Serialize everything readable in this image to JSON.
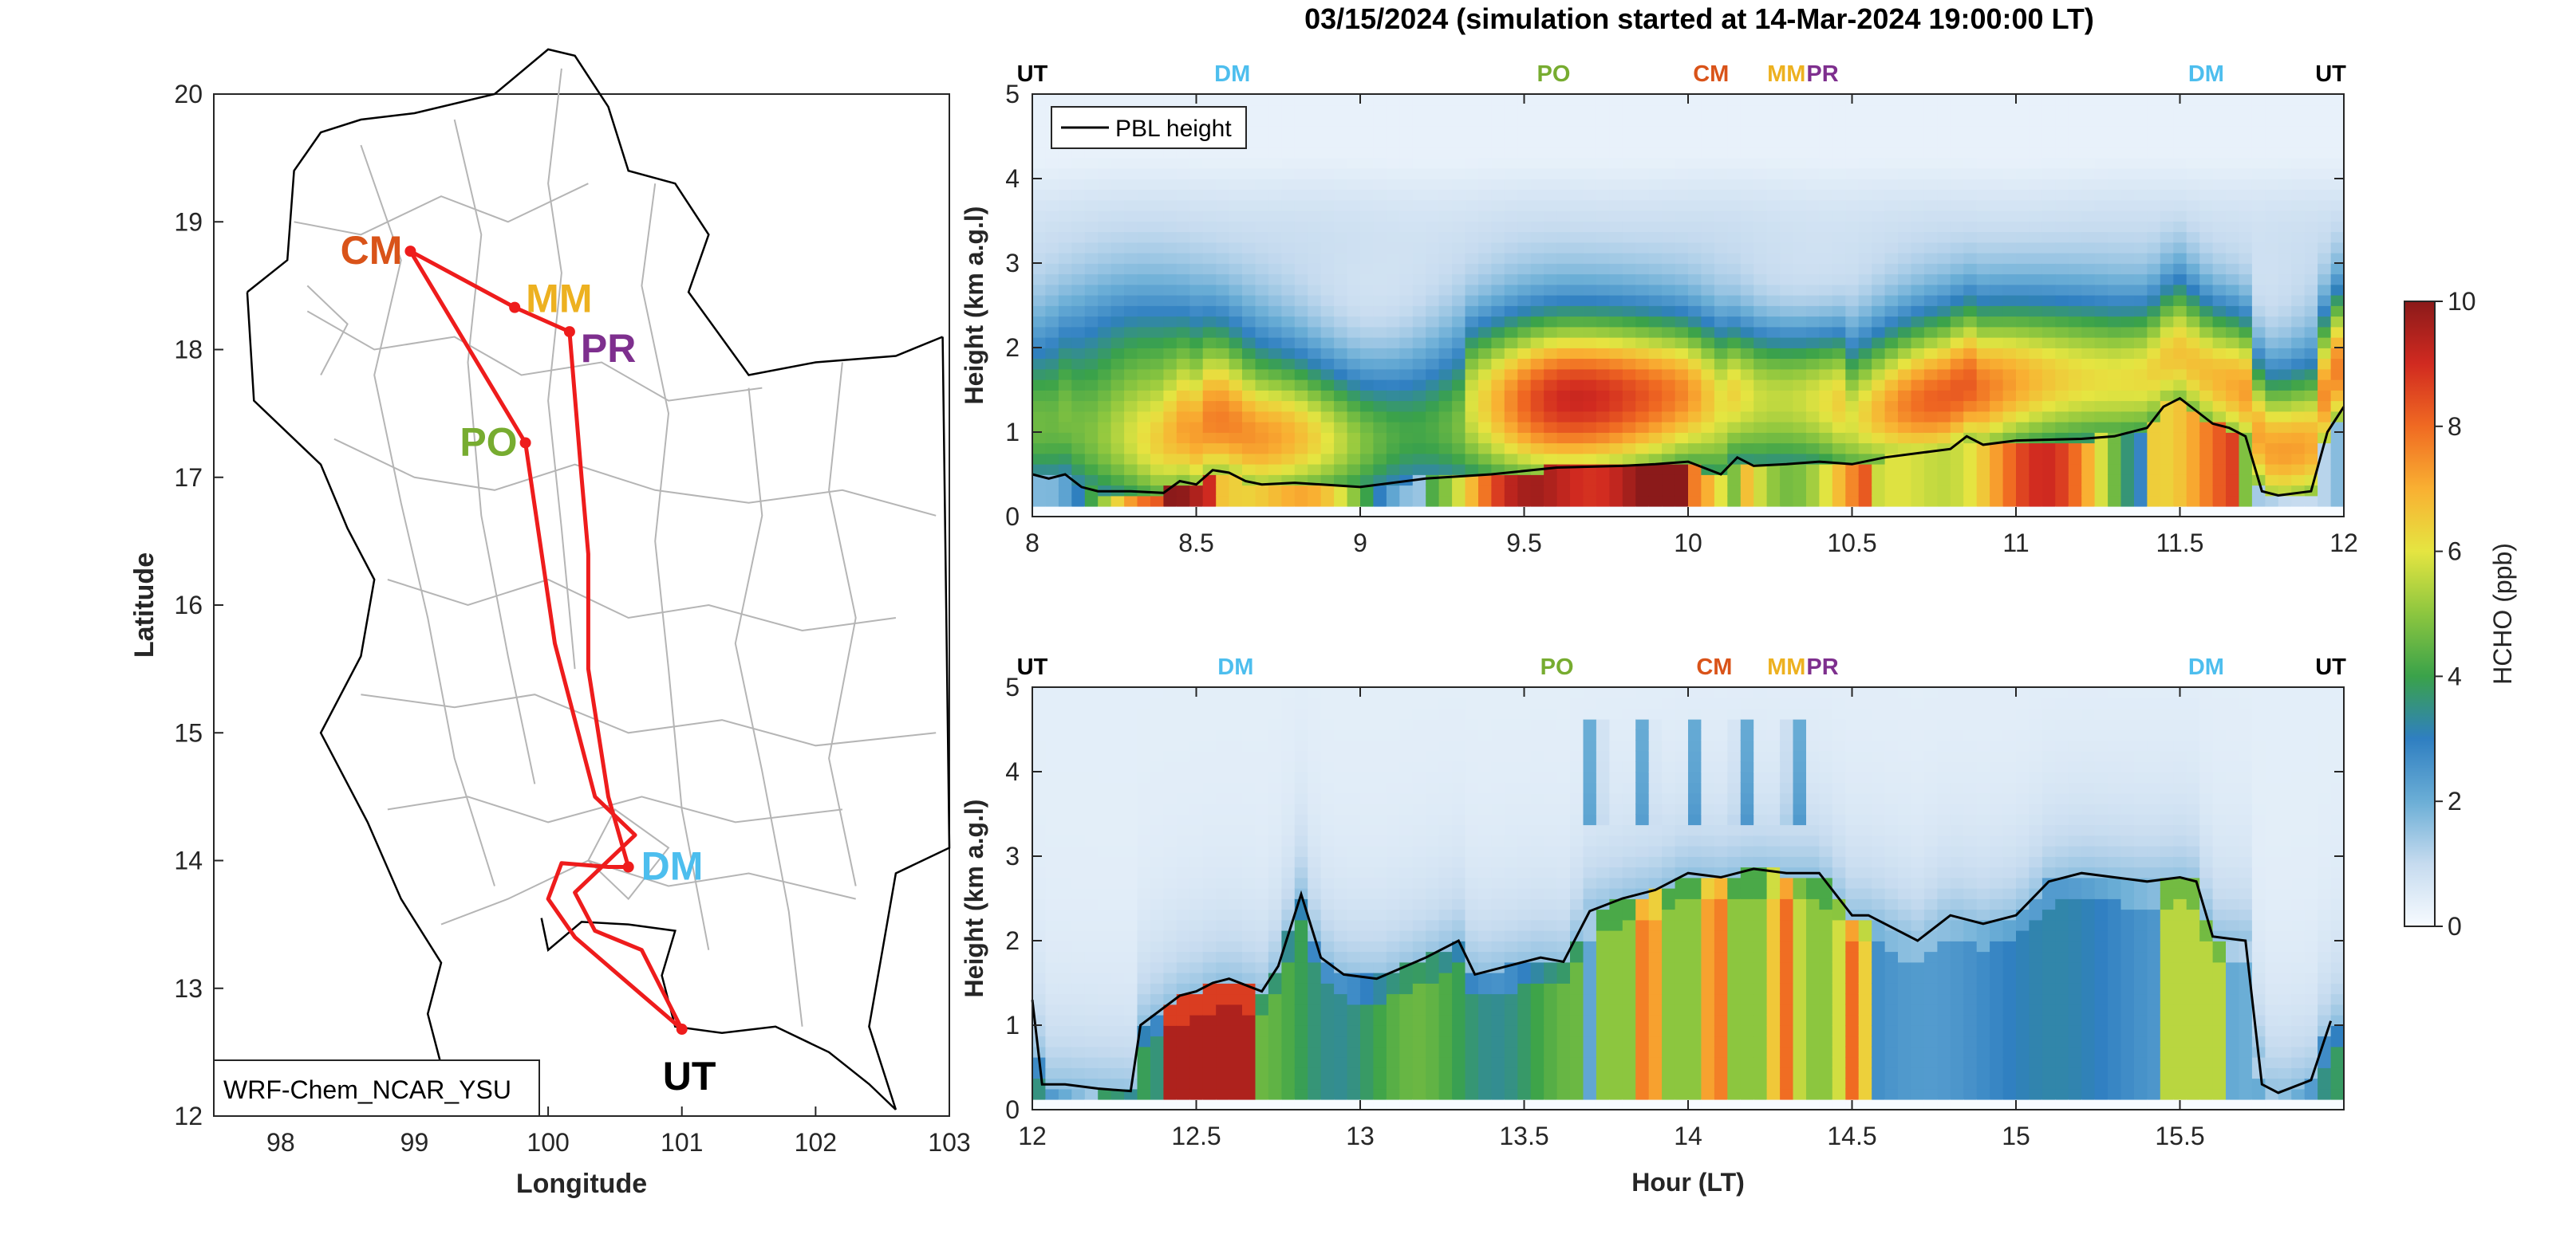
{
  "title": "03/15/2024 (simulation started at 14-Mar-2024 19:00:00 LT)",
  "colors": {
    "route": "#ee1c1c",
    "CM": "#d95319",
    "MM": "#edb120",
    "PR": "#7e2f8e",
    "PO": "#77ac30",
    "DM": "#4dbeee",
    "UT": "#000000"
  },
  "chart_data": [
    {
      "type": "map",
      "xlabel": "Longitude",
      "ylabel": "Latitude",
      "xlim": [
        97.5,
        103
      ],
      "ylim": [
        12,
        20
      ],
      "xticks": [
        "98",
        "99",
        "100",
        "101",
        "102",
        "103"
      ],
      "yticks": [
        "12",
        "13",
        "14",
        "15",
        "16",
        "17",
        "18",
        "19",
        "20"
      ],
      "legend_text": "WRF-Chem_NCAR_YSU",
      "sites": [
        {
          "label": "CM",
          "lon": 98.97,
          "lat": 18.77
        },
        {
          "label": "MM",
          "lon": 99.75,
          "lat": 18.33
        },
        {
          "label": "PR",
          "lon": 100.16,
          "lat": 18.14
        },
        {
          "label": "PO",
          "lon": 99.83,
          "lat": 17.27
        },
        {
          "label": "DM",
          "lon": 100.6,
          "lat": 13.95
        },
        {
          "label": "UT",
          "lon": 101.0,
          "lat": 12.68
        }
      ],
      "route": [
        [
          101.0,
          12.68
        ],
        [
          100.7,
          12.95
        ],
        [
          100.2,
          13.4
        ],
        [
          100.0,
          13.7
        ],
        [
          100.1,
          13.98
        ],
        [
          100.45,
          13.95
        ],
        [
          100.6,
          13.95
        ],
        [
          100.45,
          14.5
        ],
        [
          100.3,
          15.5
        ],
        [
          100.3,
          16.4
        ],
        [
          100.25,
          17.0
        ],
        [
          100.16,
          18.14
        ],
        [
          99.75,
          18.33
        ],
        [
          98.97,
          18.77
        ],
        [
          99.83,
          17.27
        ],
        [
          100.05,
          15.7
        ],
        [
          100.35,
          14.5
        ],
        [
          100.65,
          14.2
        ],
        [
          100.2,
          13.75
        ],
        [
          100.35,
          13.45
        ],
        [
          100.7,
          13.3
        ],
        [
          101.0,
          12.68
        ]
      ]
    },
    {
      "type": "heatmap",
      "title": "",
      "xlabel": "",
      "ylabel": "Height (km a.g.l)",
      "xlim": [
        8,
        12
      ],
      "ylim": [
        0,
        5
      ],
      "xticks": [
        "8",
        "8.5",
        "9",
        "9.5",
        "10",
        "10.5",
        "11",
        "11.5",
        "12"
      ],
      "yticks": [
        "0",
        "1",
        "2",
        "3",
        "4",
        "5"
      ],
      "legend": "PBL height",
      "stop_labels": [
        {
          "label": "UT",
          "x": 8.0
        },
        {
          "label": "DM",
          "x": 8.61
        },
        {
          "label": "PO",
          "x": 9.59
        },
        {
          "label": "CM",
          "x": 10.07
        },
        {
          "label": "MM",
          "x": 10.3
        },
        {
          "label": "PR",
          "x": 10.41
        },
        {
          "label": "DM",
          "x": 11.58
        },
        {
          "label": "UT",
          "x": 11.96
        }
      ],
      "pbl_height_km": {
        "x": [
          8.0,
          8.05,
          8.1,
          8.15,
          8.2,
          8.3,
          8.4,
          8.45,
          8.5,
          8.55,
          8.6,
          8.65,
          8.7,
          8.8,
          9.0,
          9.2,
          9.4,
          9.6,
          9.8,
          9.9,
          10.0,
          10.1,
          10.15,
          10.2,
          10.3,
          10.4,
          10.5,
          10.6,
          10.8,
          10.85,
          10.9,
          11.0,
          11.2,
          11.3,
          11.4,
          11.45,
          11.5,
          11.55,
          11.6,
          11.65,
          11.7,
          11.75,
          11.8,
          11.9,
          11.95,
          12.0
        ],
        "y": [
          0.5,
          0.45,
          0.5,
          0.35,
          0.3,
          0.3,
          0.28,
          0.42,
          0.38,
          0.55,
          0.52,
          0.42,
          0.38,
          0.4,
          0.35,
          0.45,
          0.5,
          0.58,
          0.6,
          0.62,
          0.65,
          0.5,
          0.7,
          0.6,
          0.62,
          0.65,
          0.62,
          0.7,
          0.8,
          0.95,
          0.85,
          0.9,
          0.92,
          0.95,
          1.05,
          1.3,
          1.4,
          1.25,
          1.1,
          1.05,
          0.95,
          0.3,
          0.25,
          0.3,
          1.0,
          1.3
        ]
      }
    },
    {
      "type": "heatmap",
      "title": "",
      "xlabel": "Hour (LT)",
      "ylabel": "Height (km a.g.l)",
      "xlim": [
        12,
        16
      ],
      "ylim": [
        0,
        5
      ],
      "xticks": [
        "12",
        "12.5",
        "13",
        "13.5",
        "14",
        "14.5",
        "15",
        "15.5"
      ],
      "yticks": [
        "0",
        "1",
        "2",
        "3",
        "4",
        "5"
      ],
      "stop_labels": [
        {
          "label": "UT",
          "x": 12.0
        },
        {
          "label": "DM",
          "x": 12.62
        },
        {
          "label": "PO",
          "x": 13.6
        },
        {
          "label": "CM",
          "x": 14.08
        },
        {
          "label": "MM",
          "x": 14.3
        },
        {
          "label": "PR",
          "x": 14.41
        },
        {
          "label": "DM",
          "x": 15.58
        },
        {
          "label": "UT",
          "x": 15.96
        }
      ],
      "pbl_height_km": {
        "x": [
          12.0,
          12.03,
          12.1,
          12.2,
          12.3,
          12.33,
          12.45,
          12.5,
          12.55,
          12.6,
          12.7,
          12.75,
          12.82,
          12.88,
          12.95,
          13.05,
          13.2,
          13.3,
          13.35,
          13.45,
          13.55,
          13.62,
          13.7,
          13.8,
          13.9,
          14.0,
          14.1,
          14.2,
          14.3,
          14.4,
          14.5,
          14.55,
          14.7,
          14.8,
          14.9,
          15.0,
          15.1,
          15.2,
          15.3,
          15.4,
          15.5,
          15.55,
          15.6,
          15.7,
          15.75,
          15.8,
          15.9,
          15.96
        ],
        "y": [
          1.3,
          0.3,
          0.3,
          0.25,
          0.22,
          1.0,
          1.35,
          1.4,
          1.5,
          1.55,
          1.4,
          1.7,
          2.55,
          1.8,
          1.6,
          1.55,
          1.8,
          2.0,
          1.6,
          1.7,
          1.8,
          1.75,
          2.35,
          2.5,
          2.6,
          2.8,
          2.75,
          2.85,
          2.8,
          2.8,
          2.3,
          2.3,
          2.0,
          2.3,
          2.2,
          2.3,
          2.7,
          2.8,
          2.75,
          2.7,
          2.75,
          2.7,
          2.05,
          2.0,
          0.3,
          0.2,
          0.35,
          1.05
        ]
      }
    }
  ],
  "colorbar": {
    "label": "HCHO (ppb)",
    "range": [
      0,
      10
    ],
    "ticks": [
      "0",
      "2",
      "4",
      "6",
      "8",
      "10"
    ],
    "colormap": [
      "#f7fbff",
      "#c6dbef",
      "#6baed6",
      "#2f7fc1",
      "#3aa24a",
      "#8cc63f",
      "#e5e541",
      "#f9b032",
      "#f06a22",
      "#d12a20",
      "#8b1a1a"
    ]
  }
}
